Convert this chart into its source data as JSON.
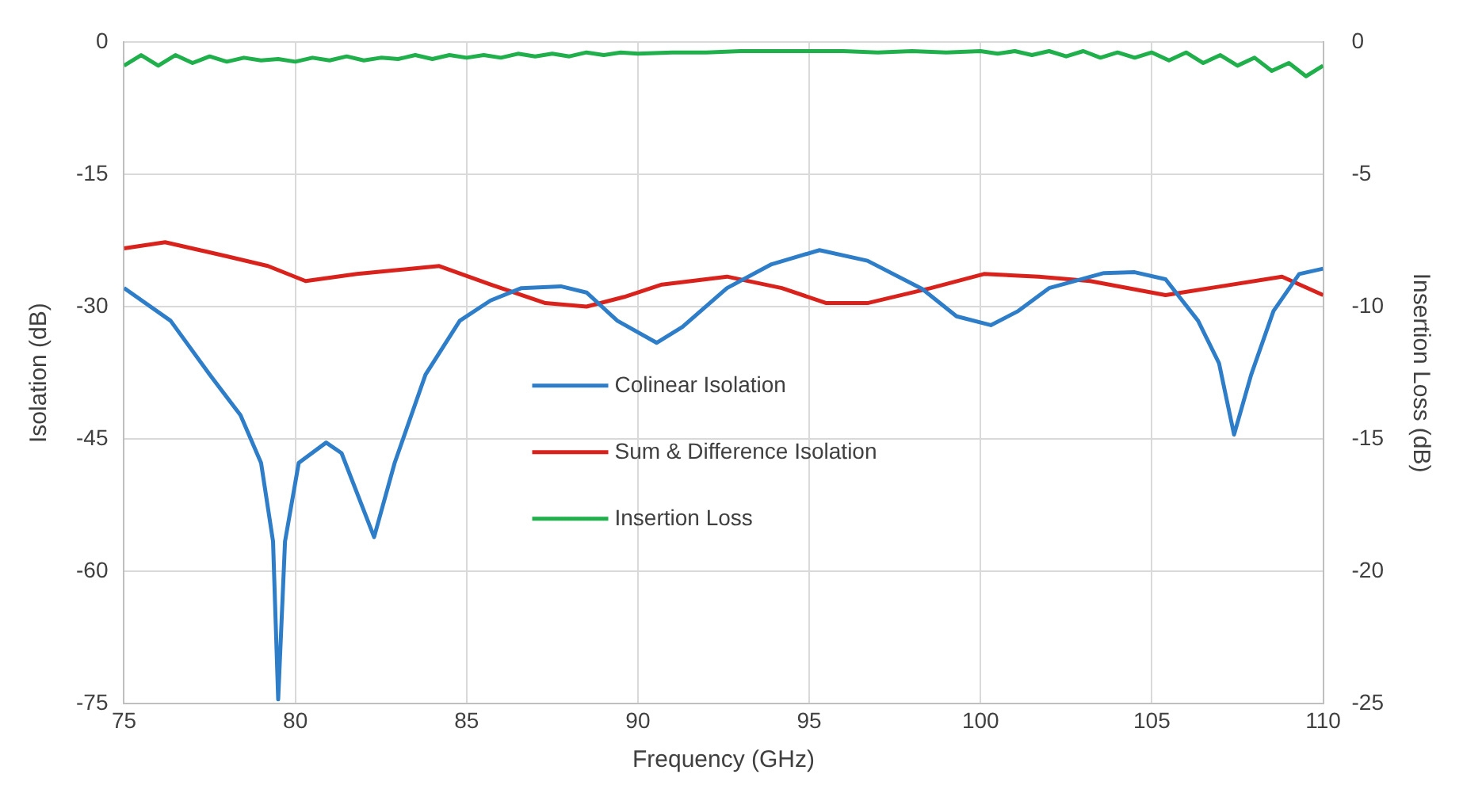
{
  "chart_data": {
    "type": "line",
    "xlabel": "Frequency (GHz)",
    "ylabel": "Isolation (dB)",
    "y2label": "Insertion Loss (dB)",
    "xlim": [
      75,
      110
    ],
    "xticks": [
      75,
      80,
      85,
      90,
      95,
      100,
      105,
      110
    ],
    "ylim": [
      -75,
      0
    ],
    "yticks": [
      -75,
      -60,
      -45,
      -30,
      -15,
      0
    ],
    "y2lim": [
      -25,
      0
    ],
    "y2ticks": [
      -25,
      -20,
      -15,
      -10,
      -5,
      0
    ],
    "grid": true,
    "legend": "center",
    "marker": "none",
    "line_style": "solid",
    "series": [
      {
        "name": "Colinear Isolation",
        "color": "#2e7dc8",
        "x": [
          75,
          76.36,
          77.5,
          78.4,
          79,
          79.35,
          79.5,
          79.7,
          80.1,
          80.9,
          81.35,
          82.3,
          82.9,
          83.8,
          84.8,
          85.7,
          86.6,
          87.75,
          88.5,
          89.4,
          90.55,
          91.3,
          92.6,
          93.9,
          95.3,
          96.7,
          98.3,
          99.3,
          100.3,
          101.1,
          102,
          103.6,
          104.5,
          105.4,
          106.35,
          106.96,
          107.4,
          107.9,
          108.55,
          109.3,
          110
        ],
        "values": [
          -27.9,
          -31.6,
          -37.7,
          -42.3,
          -47.7,
          -56.6,
          -74.5,
          -56.6,
          -47.7,
          -45.4,
          -46.6,
          -56.1,
          -47.7,
          -37.7,
          -31.6,
          -29.3,
          -27.9,
          -27.7,
          -28.4,
          -31.6,
          -34.1,
          -32.3,
          -27.9,
          -25.2,
          -23.6,
          -24.8,
          -28,
          -31.1,
          -32.1,
          -30.5,
          -27.9,
          -26.2,
          -26.1,
          -26.9,
          -31.6,
          -36.4,
          -44.5,
          -37.7,
          -30.5,
          -26.3,
          -25.7
        ]
      },
      {
        "name": "Sum & Difference Isolation",
        "color": "#d9221c",
        "x": [
          75,
          76.2,
          78,
          79.2,
          80.3,
          81.8,
          84.2,
          85.7,
          87.3,
          88.5,
          89.6,
          90.7,
          92.6,
          94.2,
          95.5,
          96.7,
          98.55,
          100.1,
          101.7,
          103.2,
          105.4,
          106.7,
          108.8,
          110
        ],
        "values": [
          -23.4,
          -22.7,
          -24.3,
          -25.4,
          -27.1,
          -26.3,
          -25.4,
          -27.5,
          -29.6,
          -30,
          -28.9,
          -27.5,
          -26.6,
          -27.9,
          -29.6,
          -29.6,
          -27.9,
          -26.3,
          -26.6,
          -27.1,
          -28.7,
          -27.9,
          -26.6,
          -28.7
        ]
      },
      {
        "name": "Insertion Loss",
        "color": "#1fb04c",
        "axis": "y2",
        "x": [
          75,
          75.5,
          76,
          76.5,
          77,
          77.5,
          78,
          78.5,
          79,
          79.5,
          80,
          80.5,
          81,
          81.5,
          82,
          82.5,
          83,
          83.5,
          84,
          84.5,
          85,
          85.5,
          86,
          86.5,
          87,
          87.5,
          88,
          88.5,
          89,
          89.5,
          90,
          91,
          92,
          93,
          94,
          95,
          96,
          97,
          98,
          99,
          100,
          100.5,
          101,
          101.5,
          102,
          102.5,
          103,
          103.5,
          104,
          104.5,
          105,
          105.5,
          106,
          106.5,
          107,
          107.5,
          108,
          108.5,
          109,
          109.5,
          110
        ],
        "values": [
          -0.9,
          -0.5,
          -0.9,
          -0.5,
          -0.8,
          -0.55,
          -0.75,
          -0.6,
          -0.7,
          -0.65,
          -0.75,
          -0.6,
          -0.7,
          -0.55,
          -0.7,
          -0.6,
          -0.65,
          -0.5,
          -0.65,
          -0.5,
          -0.6,
          -0.5,
          -0.6,
          -0.45,
          -0.55,
          -0.45,
          -0.55,
          -0.4,
          -0.5,
          -0.4,
          -0.45,
          -0.4,
          -0.4,
          -0.35,
          -0.35,
          -0.35,
          -0.35,
          -0.4,
          -0.35,
          -0.4,
          -0.35,
          -0.45,
          -0.35,
          -0.5,
          -0.35,
          -0.55,
          -0.35,
          -0.6,
          -0.4,
          -0.6,
          -0.4,
          -0.7,
          -0.4,
          -0.8,
          -0.5,
          -0.9,
          -0.6,
          -1.1,
          -0.8,
          -1.3,
          -0.9
        ]
      }
    ]
  }
}
